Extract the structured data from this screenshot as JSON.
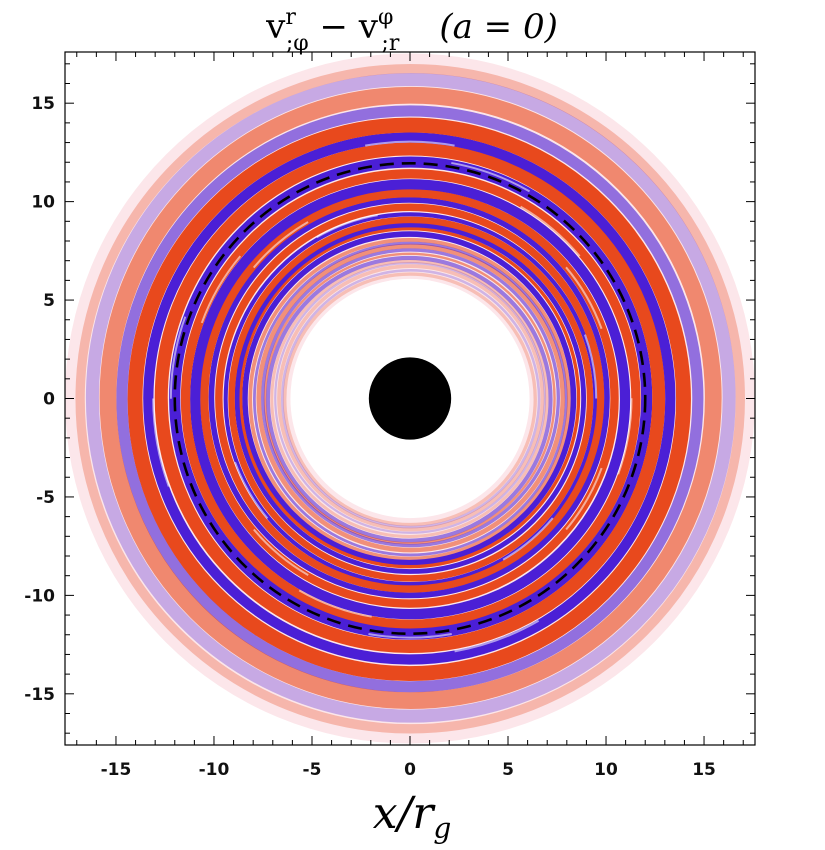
{
  "chart_data": {
    "type": "heatmap",
    "title_parts": {
      "lhs_base": "v",
      "lhs_sup": "r",
      "lhs_sub": ";φ",
      "minus": " − ",
      "rhs_base": "v",
      "rhs_sup": "φ",
      "rhs_sub": ";r",
      "param": "(a = 0)"
    },
    "xlabel": "x/r",
    "xlabel_sub": "g",
    "ylabel": "",
    "xlim": [
      -17.6,
      17.6
    ],
    "ylim": [
      -17.6,
      17.6
    ],
    "xticks": [
      -15,
      -10,
      -5,
      0,
      5,
      10,
      15
    ],
    "yticks": [
      15,
      10,
      5,
      0,
      -5,
      -10,
      -15
    ],
    "grid": false,
    "black_hole_radius": 2.1,
    "dashed_circle_radius": 12.0,
    "disk_inner_radius": 6.1,
    "disk_outer_radius": 17.6,
    "colors": {
      "positive": "#e8491d",
      "negative": "#4b1fd6",
      "background_disk": "#fce6ea",
      "black_hole": "#000000",
      "dashed": "#000000"
    }
  }
}
